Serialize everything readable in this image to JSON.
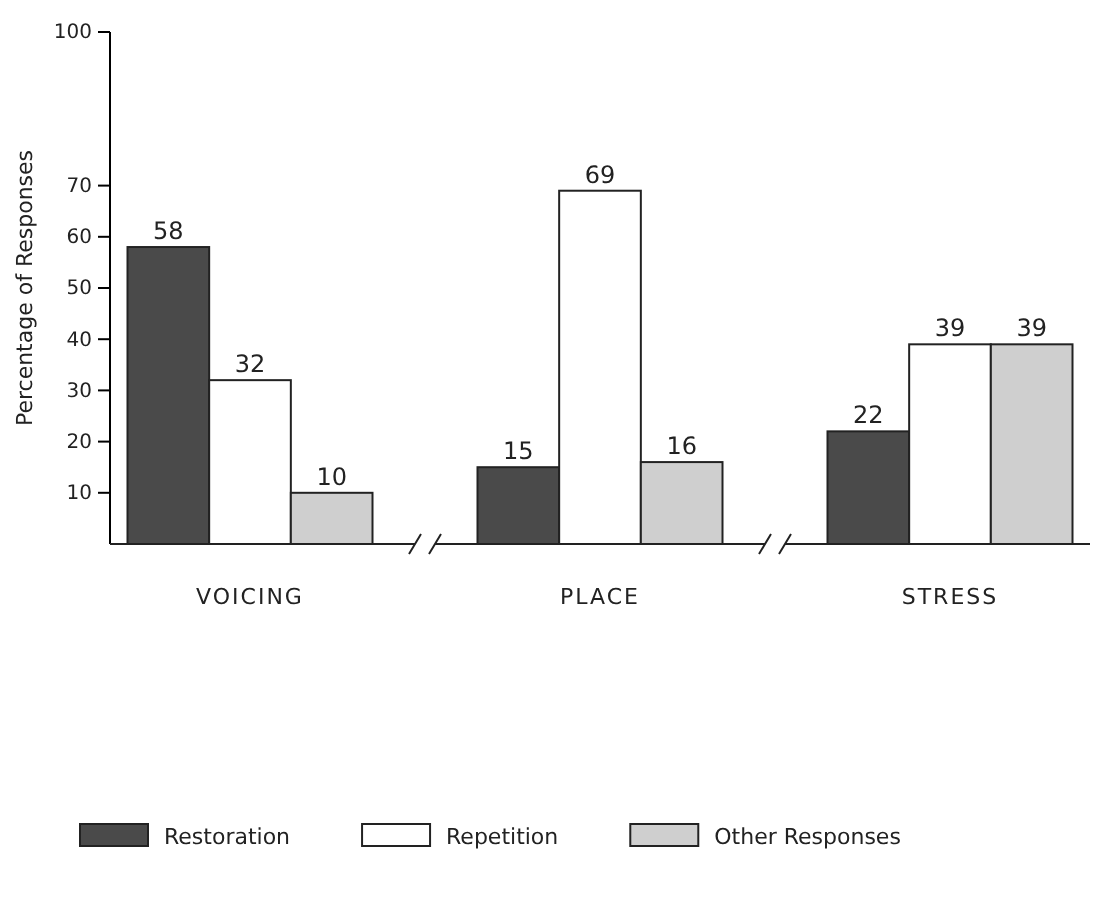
{
  "chart_data": {
    "type": "bar",
    "ylabel": "Percentage of Responses",
    "categories": [
      "VOICING",
      "PLACE",
      "STRESS"
    ],
    "series": [
      {
        "name": "Restoration",
        "color": "#4a4a4a",
        "values": [
          58,
          15,
          22
        ]
      },
      {
        "name": "Repetition",
        "color": "#ffffff",
        "values": [
          32,
          69,
          39
        ]
      },
      {
        "name": "Other Responses",
        "color": "#cfcfcf",
        "values": [
          10,
          16,
          39
        ]
      }
    ],
    "ylim": [
      0,
      100
    ],
    "yticks": [
      10,
      20,
      30,
      40,
      50,
      60,
      70,
      100
    ],
    "data_labels": true,
    "grid": false,
    "legend": "bottom"
  }
}
